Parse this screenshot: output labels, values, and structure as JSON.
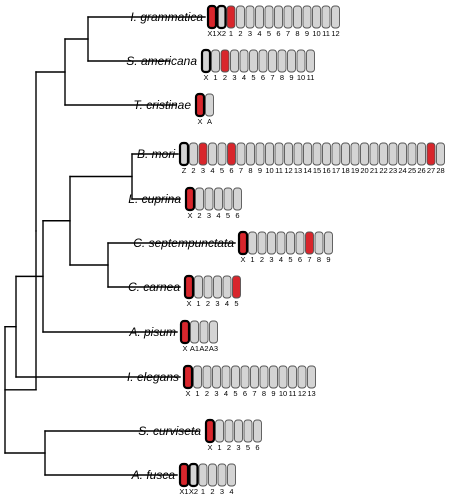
{
  "colors": {
    "black": "#000000",
    "red": "#d8262c",
    "grey": "#d4d4d4",
    "outline": "#555555"
  },
  "taxa": [
    {
      "name": "I. grammatica",
      "chromosomes": [
        {
          "label": "X1",
          "fill": "red",
          "border": "thick"
        },
        {
          "label": "X2",
          "fill": "grey",
          "border": "thick"
        },
        {
          "label": "1",
          "fill": "red",
          "border": "thin"
        },
        {
          "label": "2",
          "fill": "grey",
          "border": "thin"
        },
        {
          "label": "3",
          "fill": "grey",
          "border": "thin"
        },
        {
          "label": "4",
          "fill": "grey",
          "border": "thin"
        },
        {
          "label": "5",
          "fill": "grey",
          "border": "thin"
        },
        {
          "label": "6",
          "fill": "grey",
          "border": "thin"
        },
        {
          "label": "7",
          "fill": "grey",
          "border": "thin"
        },
        {
          "label": "8",
          "fill": "grey",
          "border": "thin"
        },
        {
          "label": "9",
          "fill": "grey",
          "border": "thin"
        },
        {
          "label": "10",
          "fill": "grey",
          "border": "thin"
        },
        {
          "label": "11",
          "fill": "grey",
          "border": "thin"
        },
        {
          "label": "12",
          "fill": "grey",
          "border": "thin"
        }
      ]
    },
    {
      "name": "S. americana",
      "chromosomes": [
        {
          "label": "X",
          "fill": "grey",
          "border": "thick"
        },
        {
          "label": "1",
          "fill": "grey",
          "border": "thin"
        },
        {
          "label": "2",
          "fill": "red",
          "border": "thin"
        },
        {
          "label": "3",
          "fill": "grey",
          "border": "thin"
        },
        {
          "label": "4",
          "fill": "grey",
          "border": "thin"
        },
        {
          "label": "5",
          "fill": "grey",
          "border": "thin"
        },
        {
          "label": "6",
          "fill": "grey",
          "border": "thin"
        },
        {
          "label": "7",
          "fill": "grey",
          "border": "thin"
        },
        {
          "label": "8",
          "fill": "grey",
          "border": "thin"
        },
        {
          "label": "9",
          "fill": "grey",
          "border": "thin"
        },
        {
          "label": "10",
          "fill": "grey",
          "border": "thin"
        },
        {
          "label": "11",
          "fill": "grey",
          "border": "thin"
        }
      ]
    },
    {
      "name": "T. cristinae",
      "chromosomes": [
        {
          "label": "X",
          "fill": "red",
          "border": "thick"
        },
        {
          "label": "A",
          "fill": "grey",
          "border": "thin"
        }
      ]
    },
    {
      "name": "B. mori",
      "chromosomes": [
        {
          "label": "Z",
          "fill": "grey",
          "border": "thick"
        },
        {
          "label": "2",
          "fill": "grey",
          "border": "thin"
        },
        {
          "label": "3",
          "fill": "red",
          "border": "thin"
        },
        {
          "label": "4",
          "fill": "grey",
          "border": "thin"
        },
        {
          "label": "5",
          "fill": "grey",
          "border": "thin"
        },
        {
          "label": "6",
          "fill": "red",
          "border": "thin"
        },
        {
          "label": "7",
          "fill": "grey",
          "border": "thin"
        },
        {
          "label": "8",
          "fill": "grey",
          "border": "thin"
        },
        {
          "label": "9",
          "fill": "grey",
          "border": "thin"
        },
        {
          "label": "10",
          "fill": "grey",
          "border": "thin"
        },
        {
          "label": "11",
          "fill": "grey",
          "border": "thin"
        },
        {
          "label": "12",
          "fill": "grey",
          "border": "thin"
        },
        {
          "label": "13",
          "fill": "grey",
          "border": "thin"
        },
        {
          "label": "14",
          "fill": "grey",
          "border": "thin"
        },
        {
          "label": "15",
          "fill": "grey",
          "border": "thin"
        },
        {
          "label": "16",
          "fill": "grey",
          "border": "thin"
        },
        {
          "label": "17",
          "fill": "grey",
          "border": "thin"
        },
        {
          "label": "18",
          "fill": "grey",
          "border": "thin"
        },
        {
          "label": "19",
          "fill": "grey",
          "border": "thin"
        },
        {
          "label": "20",
          "fill": "grey",
          "border": "thin"
        },
        {
          "label": "21",
          "fill": "grey",
          "border": "thin"
        },
        {
          "label": "22",
          "fill": "grey",
          "border": "thin"
        },
        {
          "label": "23",
          "fill": "grey",
          "border": "thin"
        },
        {
          "label": "24",
          "fill": "grey",
          "border": "thin"
        },
        {
          "label": "25",
          "fill": "grey",
          "border": "thin"
        },
        {
          "label": "26",
          "fill": "grey",
          "border": "thin"
        },
        {
          "label": "27",
          "fill": "red",
          "border": "thin"
        },
        {
          "label": "28",
          "fill": "grey",
          "border": "thin"
        }
      ]
    },
    {
      "name": "L. cuprina",
      "chromosomes": [
        {
          "label": "X",
          "fill": "red",
          "border": "thick"
        },
        {
          "label": "2",
          "fill": "grey",
          "border": "thin"
        },
        {
          "label": "3",
          "fill": "grey",
          "border": "thin"
        },
        {
          "label": "4",
          "fill": "grey",
          "border": "thin"
        },
        {
          "label": "5",
          "fill": "grey",
          "border": "thin"
        },
        {
          "label": "6",
          "fill": "grey",
          "border": "thin"
        }
      ]
    },
    {
      "name": "C. septempunctata",
      "chromosomes": [
        {
          "label": "X",
          "fill": "red",
          "border": "thick"
        },
        {
          "label": "1",
          "fill": "grey",
          "border": "thin"
        },
        {
          "label": "2",
          "fill": "grey",
          "border": "thin"
        },
        {
          "label": "3",
          "fill": "grey",
          "border": "thin"
        },
        {
          "label": "4",
          "fill": "grey",
          "border": "thin"
        },
        {
          "label": "5",
          "fill": "grey",
          "border": "thin"
        },
        {
          "label": "6",
          "fill": "grey",
          "border": "thin"
        },
        {
          "label": "7",
          "fill": "red",
          "border": "thin"
        },
        {
          "label": "8",
          "fill": "grey",
          "border": "thin"
        },
        {
          "label": "9",
          "fill": "grey",
          "border": "thin"
        }
      ]
    },
    {
      "name": "C. carnea",
      "chromosomes": [
        {
          "label": "X",
          "fill": "red",
          "border": "thick"
        },
        {
          "label": "1",
          "fill": "grey",
          "border": "thin"
        },
        {
          "label": "2",
          "fill": "grey",
          "border": "thin"
        },
        {
          "label": "3",
          "fill": "grey",
          "border": "thin"
        },
        {
          "label": "4",
          "fill": "grey",
          "border": "thin"
        },
        {
          "label": "5",
          "fill": "red",
          "border": "thin"
        }
      ]
    },
    {
      "name": "A. pisum",
      "chromosomes": [
        {
          "label": "X",
          "fill": "red",
          "border": "thick"
        },
        {
          "label": "A1",
          "fill": "grey",
          "border": "thin"
        },
        {
          "label": "A2",
          "fill": "grey",
          "border": "thin"
        },
        {
          "label": "A3",
          "fill": "grey",
          "border": "thin"
        }
      ]
    },
    {
      "name": "I. elegans",
      "chromosomes": [
        {
          "label": "X",
          "fill": "red",
          "border": "thick"
        },
        {
          "label": "1",
          "fill": "grey",
          "border": "thin"
        },
        {
          "label": "2",
          "fill": "grey",
          "border": "thin"
        },
        {
          "label": "3",
          "fill": "grey",
          "border": "thin"
        },
        {
          "label": "4",
          "fill": "grey",
          "border": "thin"
        },
        {
          "label": "5",
          "fill": "grey",
          "border": "thin"
        },
        {
          "label": "6",
          "fill": "grey",
          "border": "thin"
        },
        {
          "label": "7",
          "fill": "grey",
          "border": "thin"
        },
        {
          "label": "8",
          "fill": "grey",
          "border": "thin"
        },
        {
          "label": "9",
          "fill": "grey",
          "border": "thin"
        },
        {
          "label": "10",
          "fill": "grey",
          "border": "thin"
        },
        {
          "label": "11",
          "fill": "grey",
          "border": "thin"
        },
        {
          "label": "12",
          "fill": "grey",
          "border": "thin"
        },
        {
          "label": "13",
          "fill": "grey",
          "border": "thin"
        }
      ]
    },
    {
      "name": "S. curviseta",
      "chromosomes": [
        {
          "label": "X",
          "fill": "red",
          "border": "thick"
        },
        {
          "label": "1",
          "fill": "grey",
          "border": "thin"
        },
        {
          "label": "2",
          "fill": "grey",
          "border": "thin"
        },
        {
          "label": "3",
          "fill": "grey",
          "border": "thin"
        },
        {
          "label": "5",
          "fill": "grey",
          "border": "thin"
        },
        {
          "label": "6",
          "fill": "grey",
          "border": "thin"
        }
      ]
    },
    {
      "name": "A. fusca",
      "chromosomes": [
        {
          "label": "X1",
          "fill": "red",
          "border": "thick"
        },
        {
          "label": "X2",
          "fill": "grey",
          "border": "thick"
        },
        {
          "label": "1",
          "fill": "grey",
          "border": "thin"
        },
        {
          "label": "2",
          "fill": "grey",
          "border": "thin"
        },
        {
          "label": "3",
          "fill": "grey",
          "border": "thin"
        },
        {
          "label": "4",
          "fill": "grey",
          "border": "thin"
        }
      ]
    }
  ]
}
